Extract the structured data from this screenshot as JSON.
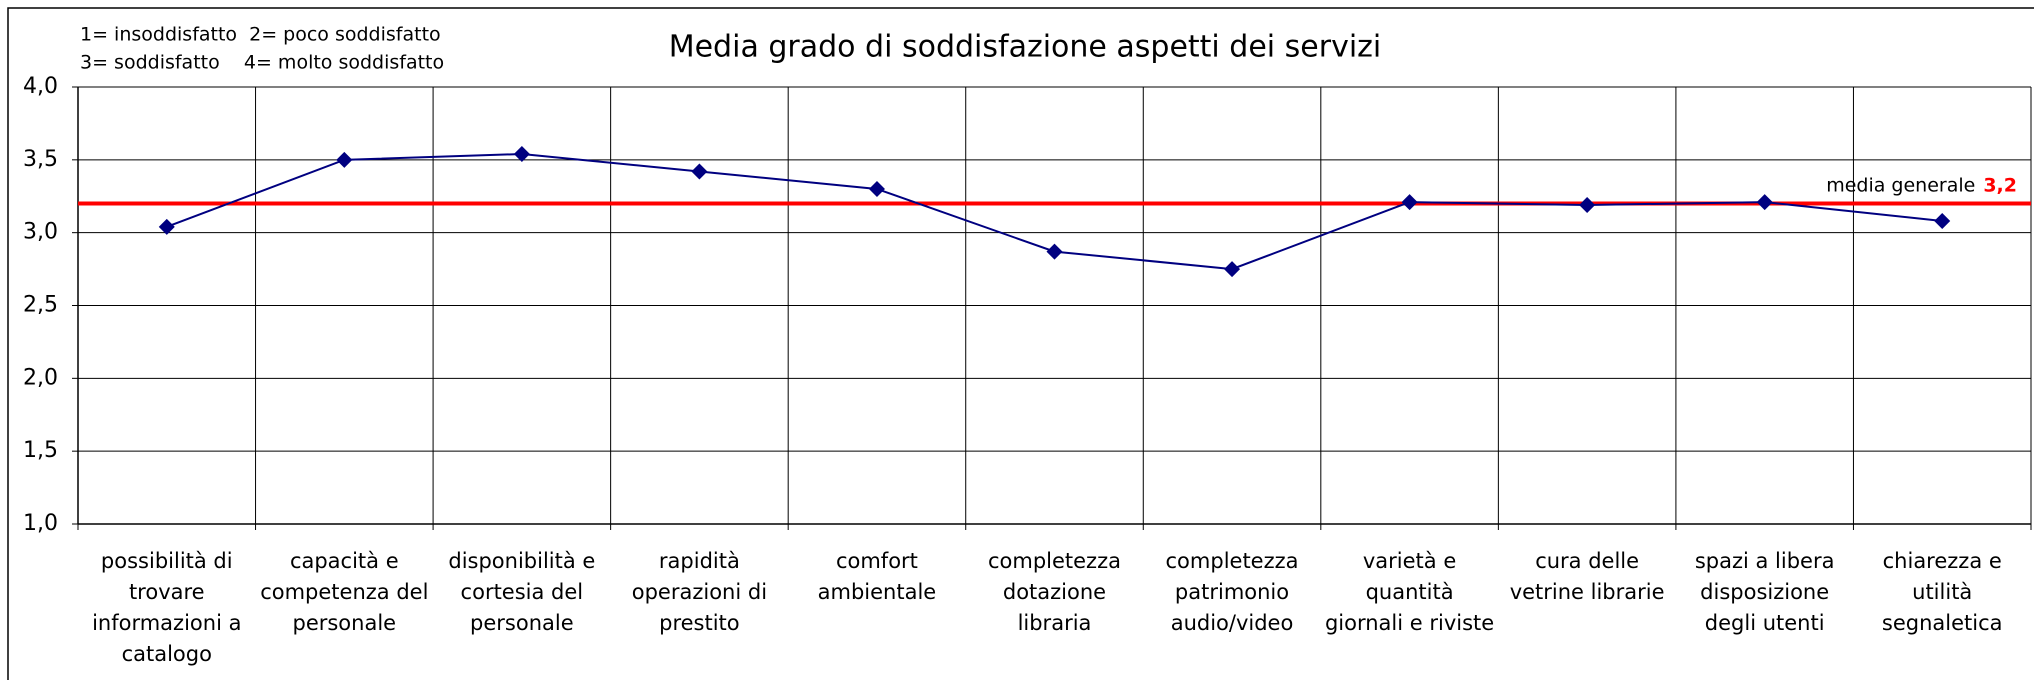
{
  "chart_data": {
    "type": "line",
    "title": "Media grado di soddisfazione aspetti dei servizi",
    "legend_text": [
      "1= insoddisfatto  2= poco soddisfatto",
      "3= soddisfatto    4= molto soddisfatto"
    ],
    "categories": [
      "possibilità di trovare informazioni a catalogo",
      "capacità e competenza del personale",
      "disponibilità e cortesia del personale",
      "rapidità operazioni di prestito",
      "comfort ambientale",
      "completezza dotazione libraria",
      "completezza patrimonio audio/video",
      "varietà e quantità giornali e riviste",
      "cura delle vetrine librarie",
      "spazi a libera disposizione degli utenti",
      "chiarezza e utilità segnaletica"
    ],
    "series": [
      {
        "name": "media",
        "color": "#000080",
        "values": [
          3.04,
          3.5,
          3.54,
          3.42,
          3.3,
          2.87,
          2.75,
          3.21,
          3.19,
          3.21,
          3.08
        ]
      }
    ],
    "ylim": [
      1,
      4
    ],
    "yticks": [
      {
        "value": 1,
        "label": "1,0"
      },
      {
        "value": 1.5,
        "label": "1,5"
      },
      {
        "value": 2,
        "label": "2,0"
      },
      {
        "value": 2.5,
        "label": "2,5"
      },
      {
        "value": 3,
        "label": "3,0"
      },
      {
        "value": 3.5,
        "label": "3,5"
      },
      {
        "value": 4,
        "label": "4,0"
      }
    ],
    "grid": true,
    "reference": {
      "text": "media generale",
      "value": 3.2,
      "label": "3,2",
      "color": "#ff0000"
    }
  }
}
